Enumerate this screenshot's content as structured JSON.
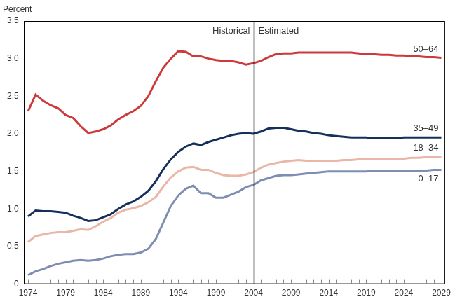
{
  "chart_data": {
    "type": "line",
    "y_label": "Percent",
    "annotations": [
      {
        "text": "Historical",
        "side": "left"
      },
      {
        "text": "Estimated",
        "side": "right"
      }
    ],
    "vertical_line": {
      "x": 2004
    },
    "x": [
      1974,
      1975,
      1976,
      1977,
      1978,
      1979,
      1980,
      1981,
      1982,
      1983,
      1984,
      1985,
      1986,
      1987,
      1988,
      1989,
      1990,
      1991,
      1992,
      1993,
      1994,
      1995,
      1996,
      1997,
      1998,
      1999,
      2000,
      2001,
      2002,
      2003,
      2004,
      2005,
      2006,
      2007,
      2008,
      2009,
      2010,
      2011,
      2012,
      2013,
      2014,
      2015,
      2016,
      2017,
      2018,
      2019,
      2020,
      2021,
      2022,
      2023,
      2024,
      2025,
      2026,
      2027,
      2028,
      2029
    ],
    "xlim": [
      1973.5,
      2029.5
    ],
    "xticks": [
      1974,
      1979,
      1984,
      1989,
      1994,
      1999,
      2004,
      2009,
      2014,
      2019,
      2024,
      2029
    ],
    "ylim": [
      0,
      3.5
    ],
    "yticks": [
      0,
      0.5,
      {
        "value": 1,
        "label": "1.0"
      },
      1.5,
      {
        "value": 2,
        "label": "2.0"
      },
      2.5,
      {
        "value": 3,
        "label": "3.0"
      },
      3.5
    ],
    "grid": false,
    "series": [
      {
        "name": "50–64",
        "color": "#cc3a3c",
        "values": [
          2.3,
          2.52,
          2.44,
          2.38,
          2.34,
          2.25,
          2.21,
          2.1,
          2.01,
          2.03,
          2.06,
          2.11,
          2.19,
          2.25,
          2.3,
          2.37,
          2.5,
          2.7,
          2.88,
          3.0,
          3.1,
          3.09,
          3.03,
          3.03,
          3.0,
          2.98,
          2.97,
          2.97,
          2.95,
          2.92,
          2.94,
          2.97,
          3.02,
          3.06,
          3.07,
          3.07,
          3.08,
          3.08,
          3.08,
          3.08,
          3.08,
          3.08,
          3.08,
          3.08,
          3.07,
          3.06,
          3.06,
          3.05,
          3.05,
          3.04,
          3.04,
          3.03,
          3.03,
          3.02,
          3.02,
          3.01
        ]
      },
      {
        "name": "35–49",
        "color": "#15305a",
        "values": [
          0.9,
          0.98,
          0.97,
          0.97,
          0.96,
          0.95,
          0.91,
          0.88,
          0.84,
          0.85,
          0.89,
          0.93,
          1.0,
          1.06,
          1.1,
          1.16,
          1.24,
          1.37,
          1.53,
          1.66,
          1.76,
          1.83,
          1.87,
          1.85,
          1.89,
          1.92,
          1.95,
          1.98,
          2.0,
          2.01,
          2.0,
          2.03,
          2.07,
          2.08,
          2.08,
          2.06,
          2.04,
          2.03,
          2.01,
          2.0,
          1.98,
          1.97,
          1.96,
          1.95,
          1.95,
          1.95,
          1.94,
          1.94,
          1.94,
          1.94,
          1.95,
          1.95,
          1.95,
          1.95,
          1.95,
          1.95
        ]
      },
      {
        "name": "18–34",
        "color": "#e9b6a8",
        "values": [
          0.56,
          0.64,
          0.66,
          0.68,
          0.69,
          0.69,
          0.71,
          0.73,
          0.72,
          0.77,
          0.83,
          0.88,
          0.95,
          0.99,
          1.01,
          1.04,
          1.09,
          1.16,
          1.3,
          1.42,
          1.5,
          1.55,
          1.56,
          1.52,
          1.52,
          1.48,
          1.45,
          1.44,
          1.44,
          1.46,
          1.49,
          1.55,
          1.59,
          1.61,
          1.63,
          1.64,
          1.65,
          1.64,
          1.64,
          1.64,
          1.64,
          1.64,
          1.65,
          1.65,
          1.66,
          1.66,
          1.66,
          1.66,
          1.67,
          1.67,
          1.67,
          1.68,
          1.68,
          1.69,
          1.69,
          1.69
        ]
      },
      {
        "name": "0–17",
        "color": "#7f8db0",
        "values": [
          0.12,
          0.17,
          0.2,
          0.24,
          0.27,
          0.29,
          0.31,
          0.32,
          0.31,
          0.32,
          0.34,
          0.37,
          0.39,
          0.4,
          0.4,
          0.42,
          0.47,
          0.6,
          0.82,
          1.04,
          1.18,
          1.27,
          1.31,
          1.21,
          1.21,
          1.15,
          1.15,
          1.19,
          1.23,
          1.29,
          1.32,
          1.38,
          1.41,
          1.44,
          1.45,
          1.45,
          1.46,
          1.47,
          1.48,
          1.49,
          1.5,
          1.5,
          1.5,
          1.5,
          1.5,
          1.5,
          1.51,
          1.51,
          1.51,
          1.51,
          1.51,
          1.51,
          1.51,
          1.51,
          1.52,
          1.52
        ]
      }
    ]
  }
}
